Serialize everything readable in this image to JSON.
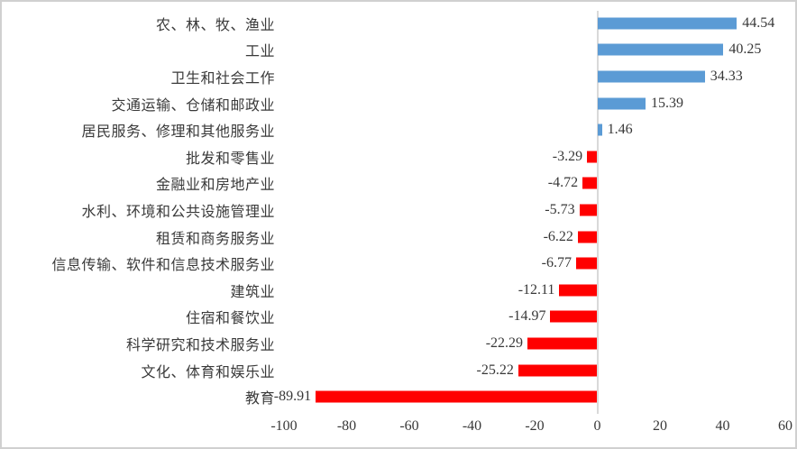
{
  "chart_data": {
    "type": "bar",
    "orientation": "horizontal",
    "title": "",
    "xlabel": "",
    "ylabel": "",
    "xlim": [
      -100,
      60
    ],
    "x_ticks": [
      -100,
      -80,
      -60,
      -40,
      -20,
      0,
      20,
      40,
      60
    ],
    "grid": false,
    "positive_color": "#5B9BD5",
    "negative_color": "#FF0000",
    "axis_line_color": "#D9D9D9",
    "categories": [
      "农、林、牧、渔业",
      "工业",
      "卫生和社会工作",
      "交通运输、仓储和邮政业",
      "居民服务、修理和其他服务业",
      "批发和零售业",
      "金融业和房地产业",
      "水利、环境和公共设施管理业",
      "租赁和商务服务业",
      "信息传输、软件和信息技术服务业",
      "建筑业",
      "住宿和餐饮业",
      "科学研究和技术服务业",
      "文化、体育和娱乐业",
      "教育"
    ],
    "values": [
      44.54,
      40.25,
      34.33,
      15.39,
      1.46,
      -3.29,
      -4.72,
      -5.73,
      -6.22,
      -6.77,
      -12.11,
      -14.97,
      -22.29,
      -25.22,
      -89.91
    ],
    "value_labels": [
      "44.54",
      "40.25",
      "34.33",
      "15.39",
      "1.46",
      "-3.29",
      "-4.72",
      "-5.73",
      "-6.22",
      "-6.77",
      "-12.11",
      "-14.97",
      "-22.29",
      "-25.22",
      "-89.91"
    ]
  }
}
